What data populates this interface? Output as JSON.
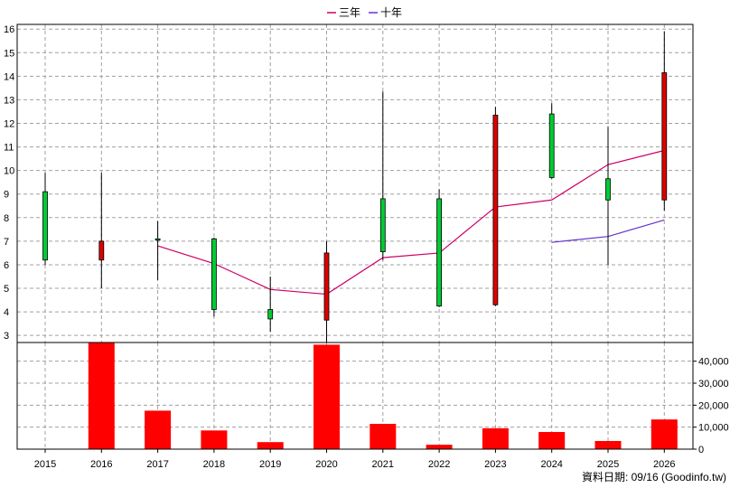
{
  "chart_data": [
    {
      "type": "candlestick",
      "legend": {
        "position": "top-center",
        "entries": [
          {
            "label": "三年",
            "color": "#cc0066"
          },
          {
            "label": "十年",
            "color": "#6633cc"
          }
        ]
      },
      "x": [
        "2015",
        "2016",
        "2017",
        "2018",
        "2019",
        "2020",
        "2021",
        "2022",
        "2023",
        "2024",
        "2025",
        "2026"
      ],
      "ylim": [
        2.7,
        16.2
      ],
      "yticks": [
        3,
        4,
        5,
        6,
        7,
        8,
        9,
        10,
        11,
        12,
        13,
        14,
        15,
        16
      ],
      "grid": true,
      "candles": [
        {
          "x": "2015",
          "open": 6.2,
          "high": 9.9,
          "low": 6.0,
          "close": 9.1
        },
        {
          "x": "2016",
          "open": 7.0,
          "high": 9.9,
          "low": 5.0,
          "close": 6.2
        },
        {
          "x": "2017",
          "open": 7.1,
          "high": 7.85,
          "low": 5.35,
          "close": 7.1
        },
        {
          "x": "2018",
          "open": 4.1,
          "high": 7.15,
          "low": 3.8,
          "close": 7.1
        },
        {
          "x": "2019",
          "open": 3.7,
          "high": 5.5,
          "low": 3.15,
          "close": 4.1
        },
        {
          "x": "2020",
          "open": 6.5,
          "high": 7.0,
          "low": 2.7,
          "close": 3.65
        },
        {
          "x": "2021",
          "open": 6.55,
          "high": 13.35,
          "low": 6.2,
          "close": 8.8
        },
        {
          "x": "2022",
          "open": 4.25,
          "high": 9.2,
          "low": 4.2,
          "close": 8.8
        },
        {
          "x": "2023",
          "open": 12.35,
          "high": 12.7,
          "low": 4.25,
          "close": 4.3
        },
        {
          "x": "2024",
          "open": 9.7,
          "high": 12.85,
          "low": 9.65,
          "close": 12.4
        },
        {
          "x": "2025",
          "open": 8.75,
          "high": 11.85,
          "low": 6.0,
          "close": 9.65
        },
        {
          "x": "2026",
          "open": 14.15,
          "high": 15.9,
          "low": 8.3,
          "close": 8.75
        }
      ],
      "series": [
        {
          "name": "三年",
          "color": "#cc0066",
          "values": [
            null,
            null,
            6.8,
            6.05,
            4.95,
            4.75,
            6.3,
            6.5,
            8.45,
            8.75,
            10.25,
            10.85
          ]
        },
        {
          "name": "十年",
          "color": "#6633cc",
          "values": [
            null,
            null,
            null,
            null,
            null,
            null,
            null,
            null,
            null,
            6.95,
            7.2,
            7.9
          ]
        }
      ]
    },
    {
      "type": "bar",
      "categories": [
        "2015",
        "2016",
        "2017",
        "2018",
        "2019",
        "2020",
        "2021",
        "2022",
        "2023",
        "2024",
        "2025",
        "2026"
      ],
      "values": [
        200,
        48500,
        17500,
        8500,
        3200,
        47500,
        11500,
        2000,
        9500,
        7800,
        3700,
        13500
      ],
      "ylim": [
        0,
        48500
      ],
      "yticks": [
        0,
        10000,
        20000,
        30000,
        40000
      ],
      "ytick_labels": [
        "0",
        "10,000",
        "20,000",
        "30,000",
        "40,000"
      ],
      "color": "#ff0000",
      "grid": true
    }
  ],
  "footer": {
    "source": "資料日期: 09/16 (Goodinfo.tw)"
  }
}
